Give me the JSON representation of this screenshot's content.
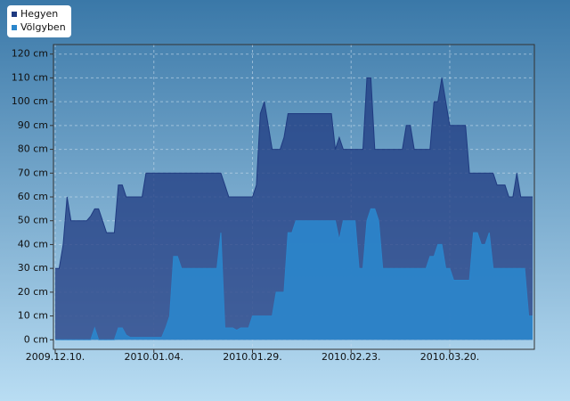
{
  "chart_data": {
    "type": "area",
    "x": [
      "2009.12.10.",
      "2009.12.11.",
      "2009.12.12.",
      "2009.12.13.",
      "2009.12.14.",
      "2009.12.15.",
      "2009.12.16.",
      "2009.12.17.",
      "2009.12.18.",
      "2009.12.19.",
      "2009.12.20.",
      "2009.12.21.",
      "2009.12.22.",
      "2009.12.23.",
      "2009.12.24.",
      "2009.12.25.",
      "2009.12.26.",
      "2009.12.27.",
      "2009.12.28.",
      "2009.12.29.",
      "2009.12.30.",
      "2009.12.31.",
      "2010.01.01.",
      "2010.01.02.",
      "2010.01.03.",
      "2010.01.04.",
      "2010.01.05.",
      "2010.01.06.",
      "2010.01.07.",
      "2010.01.08.",
      "2010.01.09.",
      "2010.01.10.",
      "2010.01.11.",
      "2010.01.12.",
      "2010.01.13.",
      "2010.01.14.",
      "2010.01.15.",
      "2010.01.16.",
      "2010.01.17.",
      "2010.01.18.",
      "2010.01.19.",
      "2010.01.20.",
      "2010.01.21.",
      "2010.01.22.",
      "2010.01.23.",
      "2010.01.24.",
      "2010.01.25.",
      "2010.01.26.",
      "2010.01.27.",
      "2010.01.28.",
      "2010.01.29.",
      "2010.01.30.",
      "2010.01.31.",
      "2010.02.01.",
      "2010.02.02.",
      "2010.02.03.",
      "2010.02.04.",
      "2010.02.05.",
      "2010.02.06.",
      "2010.02.07.",
      "2010.02.08.",
      "2010.02.09.",
      "2010.02.10.",
      "2010.02.11.",
      "2010.02.12.",
      "2010.02.13.",
      "2010.02.14.",
      "2010.02.15.",
      "2010.02.16.",
      "2010.02.17.",
      "2010.02.18.",
      "2010.02.19.",
      "2010.02.20.",
      "2010.02.21.",
      "2010.02.22.",
      "2010.02.23.",
      "2010.02.24.",
      "2010.02.25.",
      "2010.02.26.",
      "2010.02.27.",
      "2010.02.28.",
      "2010.03.01.",
      "2010.03.02.",
      "2010.03.03.",
      "2010.03.04.",
      "2010.03.05.",
      "2010.03.06.",
      "2010.03.07.",
      "2010.03.08.",
      "2010.03.09.",
      "2010.03.10.",
      "2010.03.11.",
      "2010.03.12.",
      "2010.03.13.",
      "2010.03.14.",
      "2010.03.15.",
      "2010.03.16.",
      "2010.03.17.",
      "2010.03.18.",
      "2010.03.19.",
      "2010.03.20.",
      "2010.03.21.",
      "2010.03.22.",
      "2010.03.23.",
      "2010.03.24.",
      "2010.03.25.",
      "2010.03.26.",
      "2010.03.27.",
      "2010.03.28.",
      "2010.03.29.",
      "2010.03.30.",
      "2010.03.31.",
      "2010.04.01.",
      "2010.04.02.",
      "2010.04.03.",
      "2010.04.04.",
      "2010.04.05.",
      "2010.04.06.",
      "2010.04.07.",
      "2010.04.08.",
      "2010.04.09.",
      "2010.04.10."
    ],
    "series": [
      {
        "name": "Hegyen",
        "color": "#1f3a80",
        "values": [
          30,
          30,
          40,
          60,
          50,
          50,
          50,
          50,
          50,
          52,
          55,
          55,
          50,
          45,
          45,
          45,
          65,
          65,
          60,
          60,
          60,
          60,
          60,
          70,
          70,
          70,
          70,
          70,
          70,
          70,
          70,
          70,
          70,
          70,
          70,
          70,
          70,
          70,
          70,
          70,
          70,
          70,
          70,
          65,
          60,
          60,
          60,
          60,
          60,
          60,
          60,
          65,
          95,
          100,
          90,
          80,
          80,
          80,
          85,
          95,
          95,
          95,
          95,
          95,
          95,
          95,
          95,
          95,
          95,
          95,
          95,
          80,
          85,
          80,
          80,
          80,
          80,
          80,
          80,
          110,
          110,
          80,
          80,
          80,
          80,
          80,
          80,
          80,
          80,
          90,
          90,
          80,
          80,
          80,
          80,
          80,
          100,
          100,
          110,
          100,
          90,
          90,
          90,
          90,
          90,
          70,
          70,
          70,
          70,
          70,
          70,
          70,
          65,
          65,
          65,
          60,
          60,
          70,
          60,
          60,
          60,
          60
        ]
      },
      {
        "name": "Völgyben",
        "color": "#2b86cc",
        "values": [
          0,
          0,
          0,
          0,
          0,
          0,
          0,
          0,
          0,
          0,
          5,
          0,
          0,
          0,
          0,
          0,
          5,
          5,
          2,
          1,
          1,
          1,
          1,
          1,
          1,
          1,
          1,
          1,
          5,
          10,
          35,
          35,
          30,
          30,
          30,
          30,
          30,
          30,
          30,
          30,
          30,
          30,
          45,
          5,
          5,
          5,
          4,
          5,
          5,
          5,
          10,
          10,
          10,
          10,
          10,
          10,
          20,
          20,
          20,
          45,
          45,
          50,
          50,
          50,
          50,
          50,
          50,
          50,
          50,
          50,
          50,
          50,
          42,
          50,
          50,
          50,
          50,
          30,
          30,
          50,
          55,
          55,
          50,
          30,
          30,
          30,
          30,
          30,
          30,
          30,
          30,
          30,
          30,
          30,
          30,
          35,
          35,
          40,
          40,
          30,
          30,
          25,
          25,
          25,
          25,
          25,
          45,
          45,
          40,
          40,
          45,
          30,
          30,
          30,
          30,
          30,
          30,
          30,
          30,
          30,
          10,
          10
        ]
      }
    ],
    "xlim": [
      "2009.12.10.",
      "2010.04.10."
    ],
    "xticks": [
      "2009.12.10.",
      "2010.01.04.",
      "2010.01.29.",
      "2010.02.23.",
      "2010.03.20."
    ],
    "ylim": [
      -4,
      124
    ],
    "yticks": [
      {
        "value": 0,
        "label": "0 cm"
      },
      {
        "value": 10,
        "label": "10 cm"
      },
      {
        "value": 20,
        "label": "20 cm"
      },
      {
        "value": 30,
        "label": "30 cm"
      },
      {
        "value": 40,
        "label": "40 cm"
      },
      {
        "value": 50,
        "label": "50 cm"
      },
      {
        "value": 60,
        "label": "60 cm"
      },
      {
        "value": 70,
        "label": "70 cm"
      },
      {
        "value": 80,
        "label": "80 cm"
      },
      {
        "value": 90,
        "label": "90 cm"
      },
      {
        "value": 100,
        "label": "100 cm"
      },
      {
        "value": 110,
        "label": "110 cm"
      },
      {
        "value": 120,
        "label": "120 cm"
      }
    ],
    "grid": true
  }
}
